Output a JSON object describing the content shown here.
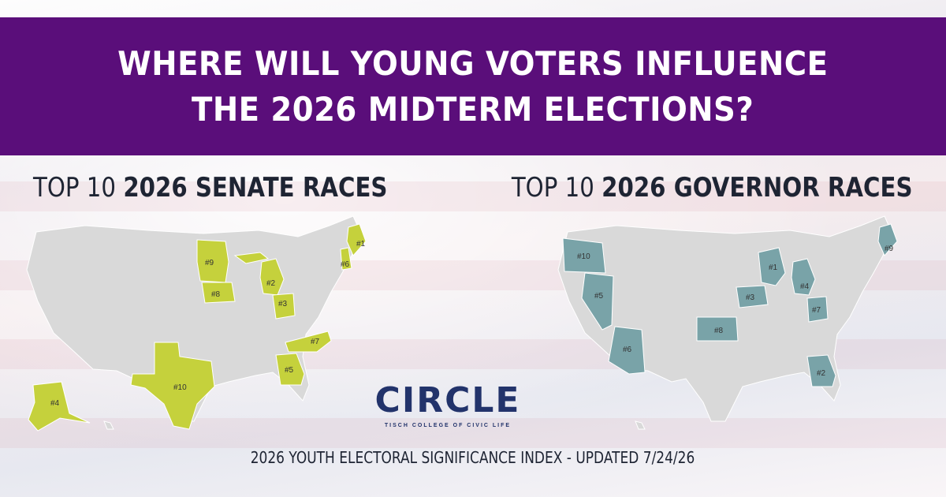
{
  "banner": {
    "line1": "WHERE WILL YOUNG VOTERS INFLUENCE",
    "line2": "THE 2026 MIDTERM ELECTIONS?"
  },
  "senate": {
    "heading_prefix": "TOP 10 ",
    "heading_bold": "2026 SENATE RACES",
    "highlight_color": "#c5d13c",
    "ranks": [
      {
        "state": "Maine",
        "label": "#1"
      },
      {
        "state": "Michigan",
        "label": "#2"
      },
      {
        "state": "Ohio",
        "label": "#3"
      },
      {
        "state": "Alaska",
        "label": "#4"
      },
      {
        "state": "Georgia",
        "label": "#5"
      },
      {
        "state": "New Hampshire",
        "label": "#6"
      },
      {
        "state": "North Carolina",
        "label": "#7"
      },
      {
        "state": "Iowa",
        "label": "#8"
      },
      {
        "state": "Minnesota",
        "label": "#9"
      },
      {
        "state": "Texas",
        "label": "#10"
      }
    ]
  },
  "governor": {
    "heading_prefix": "TOP 10 ",
    "heading_bold": "2026 GOVERNOR RACES",
    "highlight_color": "#79a3a8",
    "ranks": [
      {
        "state": "Wisconsin",
        "label": "#1"
      },
      {
        "state": "Georgia",
        "label": "#2"
      },
      {
        "state": "Iowa",
        "label": "#3"
      },
      {
        "state": "Michigan",
        "label": "#4"
      },
      {
        "state": "Nevada",
        "label": "#5"
      },
      {
        "state": "Arizona",
        "label": "#6"
      },
      {
        "state": "Ohio",
        "label": "#7"
      },
      {
        "state": "Kansas",
        "label": "#8"
      },
      {
        "state": "Maine",
        "label": "#9"
      },
      {
        "state": "Oregon",
        "label": "#10"
      }
    ]
  },
  "map_base_color": "#d9d9d9",
  "logo": {
    "word": "CIRCLE",
    "subtitle": "TISCH COLLEGE OF CIVIC LIFE",
    "colors": {
      "navy": "#22336b",
      "red": "#d0243c"
    }
  },
  "footer": "2026 YOUTH ELECTORAL SIGNIFICANCE INDEX - UPDATED 7/24/26"
}
